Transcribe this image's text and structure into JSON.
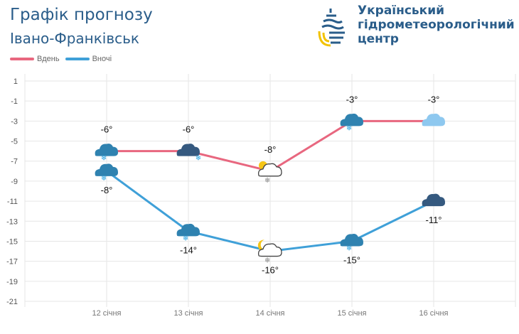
{
  "header": {
    "title": "Графік прогнозу",
    "city": "Івано-Франківськ",
    "org_lines": [
      "Український",
      "гідрометеорологічний",
      "центр"
    ]
  },
  "colors": {
    "day": "#e8677f",
    "night": "#3fa0d8",
    "text": "#2a5d8a",
    "grid": "#e6e6e6"
  },
  "chart_data": {
    "type": "line",
    "categories": [
      "12 січня",
      "13 січня",
      "14 січня",
      "15 січня",
      "16 січня"
    ],
    "yticks": [
      1,
      -1,
      -3,
      -5,
      -7,
      -9,
      -11,
      -13,
      -15,
      -17,
      -19,
      -21
    ],
    "ylim": [
      -21,
      1
    ],
    "grid": true,
    "legend": "top-left",
    "series": [
      {
        "name": "Вдень",
        "values": [
          -6,
          -6,
          -8,
          -3,
          -3
        ],
        "labels": [
          "-6°",
          "-6°",
          "-8°",
          "-3°",
          "-3°"
        ],
        "icons": [
          "cloud-snow-icon",
          "dark-cloud-snow-icon",
          "sun-cloud-snow-icon",
          "cloud-snow-icon",
          "light-cloud-icon"
        ]
      },
      {
        "name": "Вночі",
        "values": [
          -8,
          -14,
          -16,
          -15,
          -11
        ],
        "labels": [
          "-8°",
          "-14°",
          "-16°",
          "-15°",
          "-11°"
        ],
        "icons": [
          "cloud-snow-icon",
          "cloud-snow-icon",
          "moon-cloud-snow-icon",
          "cloud-snow-icon",
          "dark-cloud-icon"
        ]
      }
    ]
  }
}
